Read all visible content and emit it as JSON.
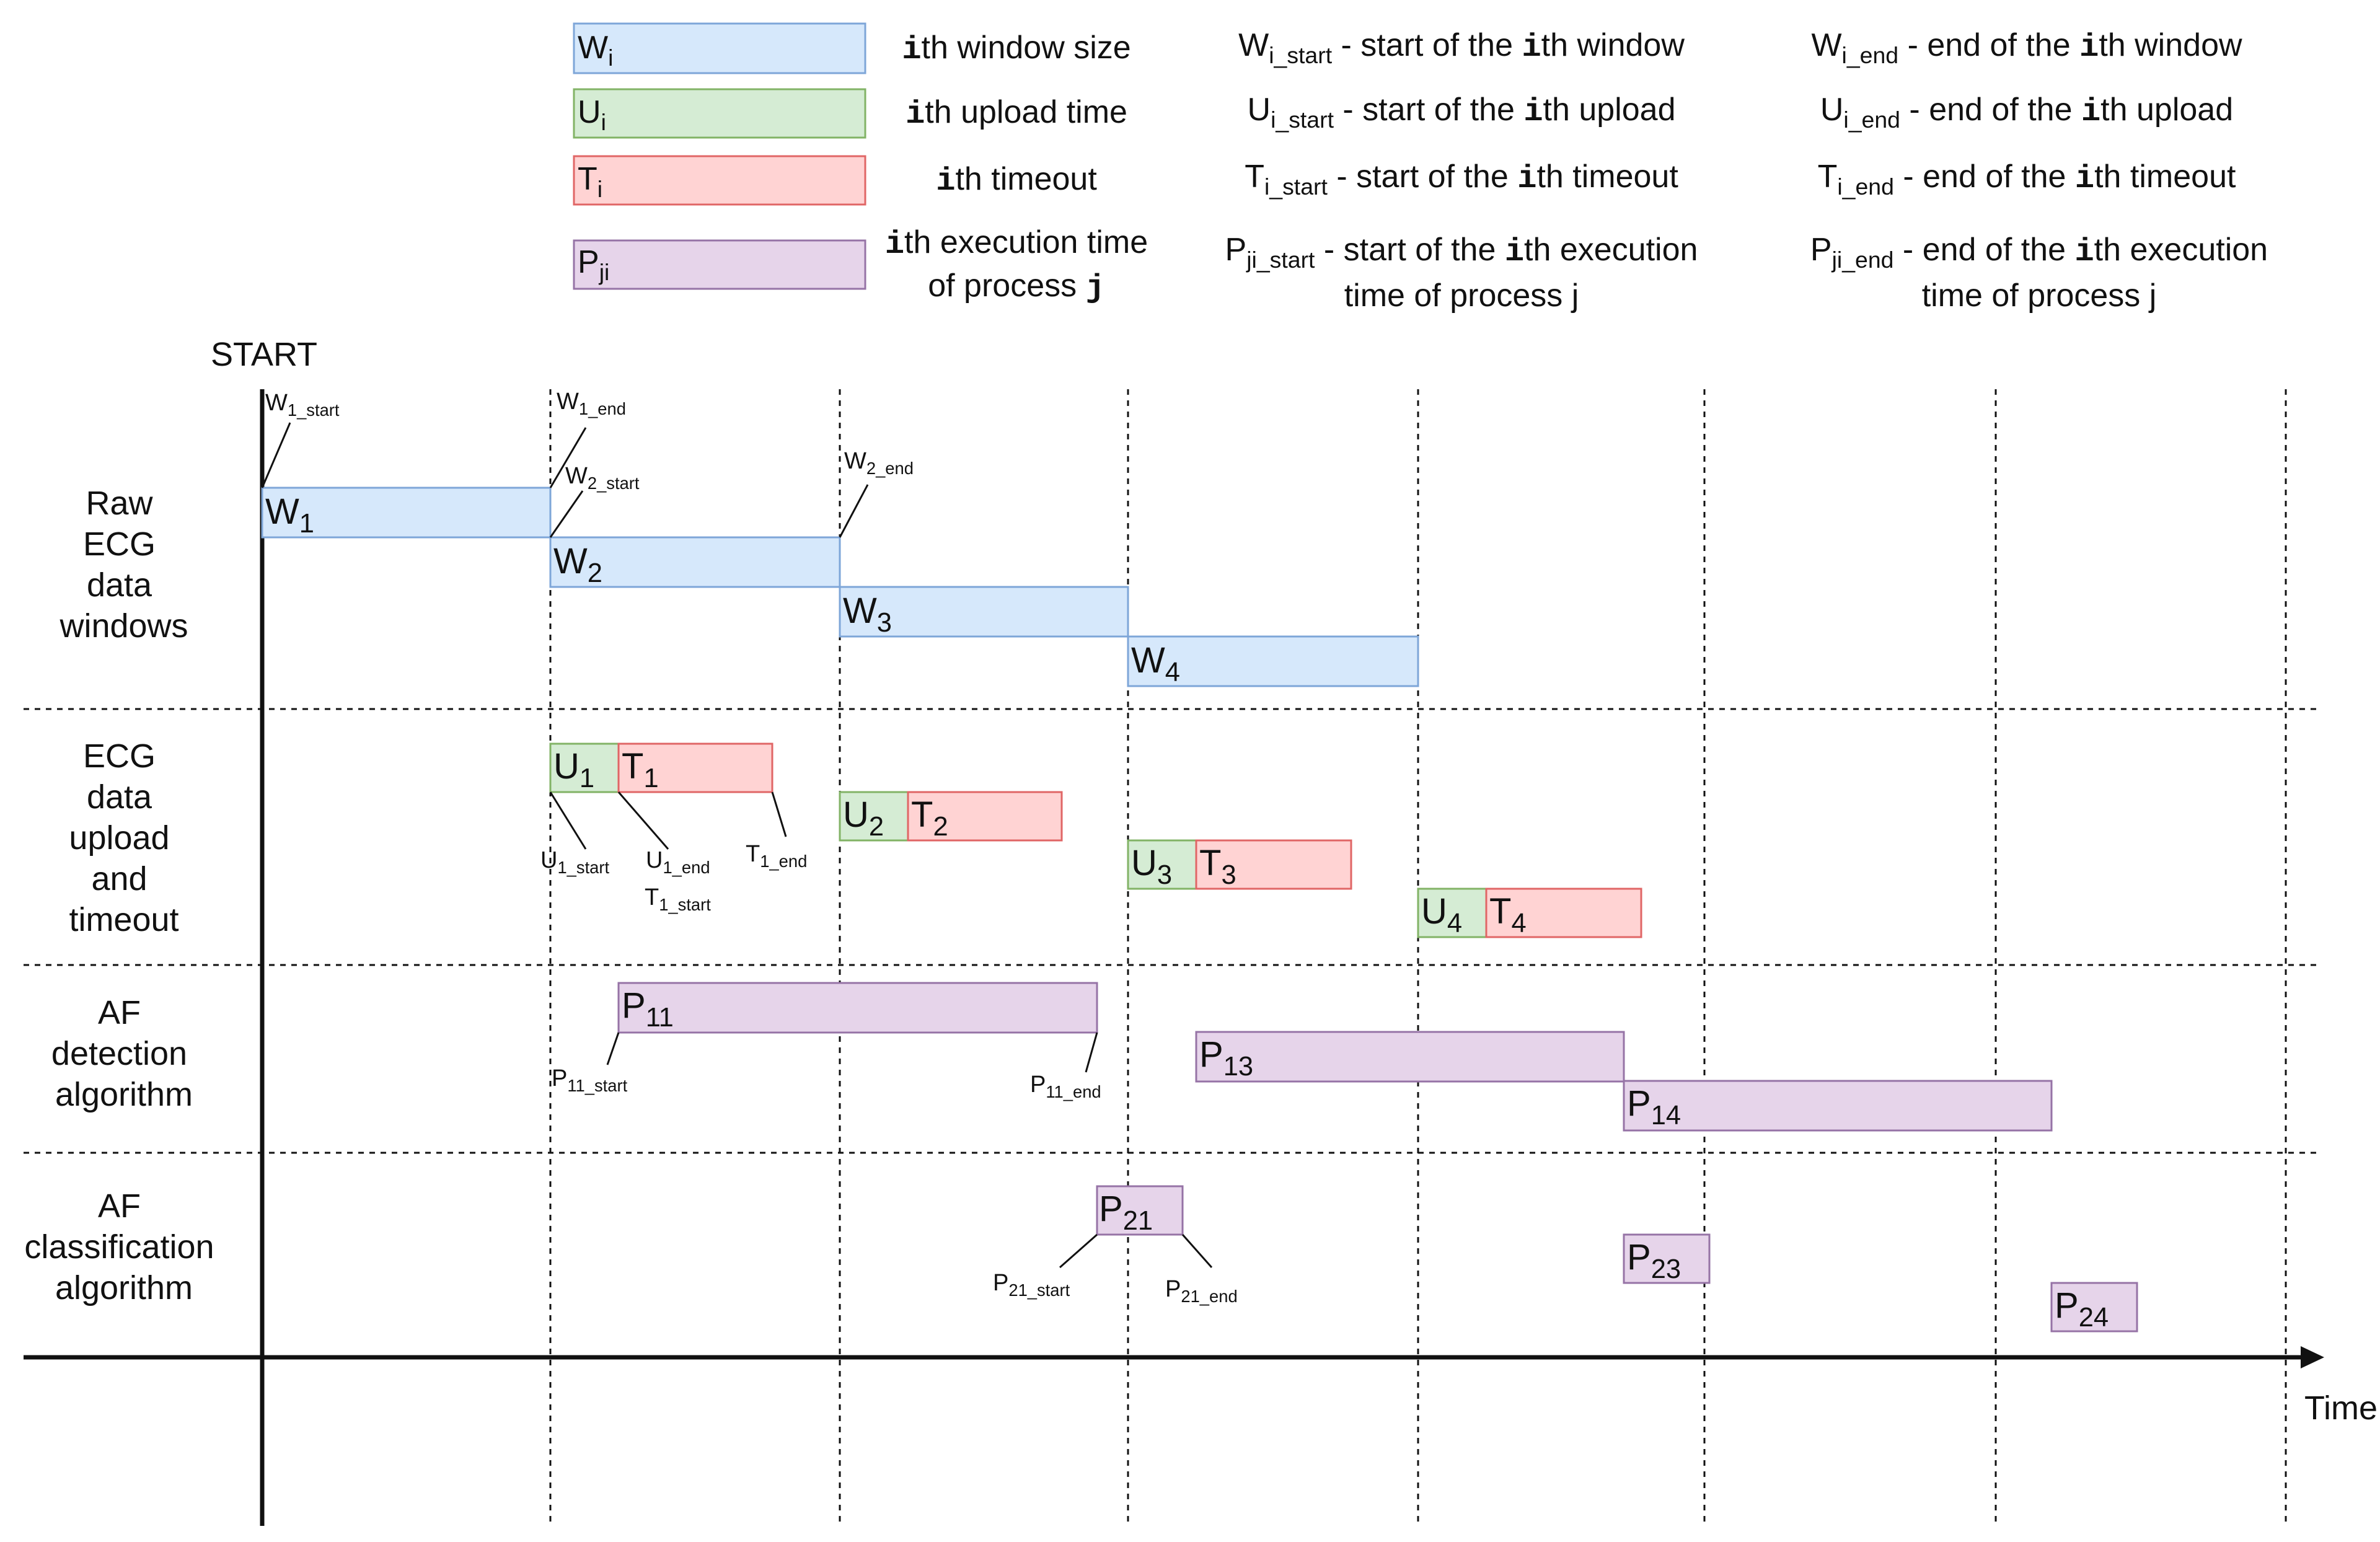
{
  "colors": {
    "window_fill": "#d6e8fb",
    "window_stroke": "#7ea6d8",
    "upload_fill": "#d5ecd4",
    "upload_stroke": "#82b366",
    "timeout_fill": "#ffd3d3",
    "timeout_stroke": "#e06666",
    "process_fill": "#e6d4ea",
    "process_stroke": "#9673a6",
    "line": "#111111"
  },
  "legend": {
    "window": {
      "box_main": "W",
      "box_sub": "i",
      "desc_i": "i",
      "desc": "th window size",
      "start_main": "W",
      "start_sub": "i_start",
      "start_pre": " - start of the ",
      "start_i": "i",
      "start_post": "th window",
      "end_main": "W",
      "end_sub": "i_end",
      "end_pre": " - end of the ",
      "end_i": "i",
      "end_post": "th window"
    },
    "upload": {
      "box_main": "U",
      "box_sub": "i",
      "desc_i": "i",
      "desc": "th upload time",
      "start_main": "U",
      "start_sub": "i_start",
      "start_pre": " - start of the ",
      "start_i": "i",
      "start_post": "th upload",
      "end_main": "U",
      "end_sub": "i_end",
      "end_pre": " - end of the ",
      "end_i": "i",
      "end_post": "th upload"
    },
    "timeout": {
      "box_main": "T",
      "box_sub": "i",
      "desc_i": "i",
      "desc": "th timeout",
      "start_main": "T",
      "start_sub": "i_start",
      "start_pre": " - start of the ",
      "start_i": "i",
      "start_post": "th timeout",
      "end_main": "T",
      "end_sub": "i_end",
      "end_pre": " - end of the ",
      "end_i": "i",
      "end_post": "th timeout"
    },
    "process": {
      "box_main": "P",
      "box_sub": "ji",
      "desc_i": "i",
      "desc": "th execution time",
      "desc2_pre": "of process ",
      "desc2_j": "j",
      "start_main": "P",
      "start_sub": "ji_start",
      "start_pre": " - start of the ",
      "start_i": "i",
      "start_post": "th execution",
      "start_line2": "time of process j",
      "end_main": "P",
      "end_sub": "ji_end",
      "end_pre": " - end of the ",
      "end_i": "i",
      "end_post": "th execution",
      "end_line2": "time of process j"
    }
  },
  "start_label": "START",
  "time_label": "Time",
  "rows": {
    "raw": [
      "Raw",
      "ECG",
      "data",
      "windows"
    ],
    "upload": [
      "ECG",
      "data",
      "upload",
      "and",
      "timeout"
    ],
    "detect": [
      "AF",
      "detection",
      "algorithm"
    ],
    "classify": [
      "AF",
      "classification",
      "algorithm"
    ]
  },
  "segments": {
    "w1": {
      "main": "W",
      "sub": "1"
    },
    "w2": {
      "main": "W",
      "sub": "2"
    },
    "w3": {
      "main": "W",
      "sub": "3"
    },
    "w4": {
      "main": "W",
      "sub": "4"
    },
    "u1": {
      "main": "U",
      "sub": "1"
    },
    "t1": {
      "main": "T",
      "sub": "1"
    },
    "u2": {
      "main": "U",
      "sub": "2"
    },
    "t2": {
      "main": "T",
      "sub": "2"
    },
    "u3": {
      "main": "U",
      "sub": "3"
    },
    "t3": {
      "main": "T",
      "sub": "3"
    },
    "u4": {
      "main": "U",
      "sub": "4"
    },
    "t4": {
      "main": "T",
      "sub": "4"
    },
    "p11": {
      "main": "P",
      "sub": "11"
    },
    "p13": {
      "main": "P",
      "sub": "13"
    },
    "p14": {
      "main": "P",
      "sub": "14"
    },
    "p21": {
      "main": "P",
      "sub": "21"
    },
    "p23": {
      "main": "P",
      "sub": "23"
    },
    "p24": {
      "main": "P",
      "sub": "24"
    }
  },
  "annotations": {
    "w1_start": {
      "main": "W",
      "sub": "1_start"
    },
    "w1_end": {
      "main": "W",
      "sub": "1_end"
    },
    "w2_start": {
      "main": "W",
      "sub": "2_start"
    },
    "w2_end": {
      "main": "W",
      "sub": "2_end"
    },
    "u1_start": {
      "main": "U",
      "sub": "1_start"
    },
    "u1_end": {
      "main": "U",
      "sub": "1_end"
    },
    "t1_start": {
      "main": "T",
      "sub": "1_start"
    },
    "t1_end": {
      "main": "T",
      "sub": "1_end"
    },
    "p11_start": {
      "main": "P",
      "sub": "11_start"
    },
    "p11_end": {
      "main": "P",
      "sub": "11_end"
    },
    "p21_start": {
      "main": "P",
      "sub": "21_start"
    },
    "p21_end": {
      "main": "P",
      "sub": "21_end"
    }
  }
}
